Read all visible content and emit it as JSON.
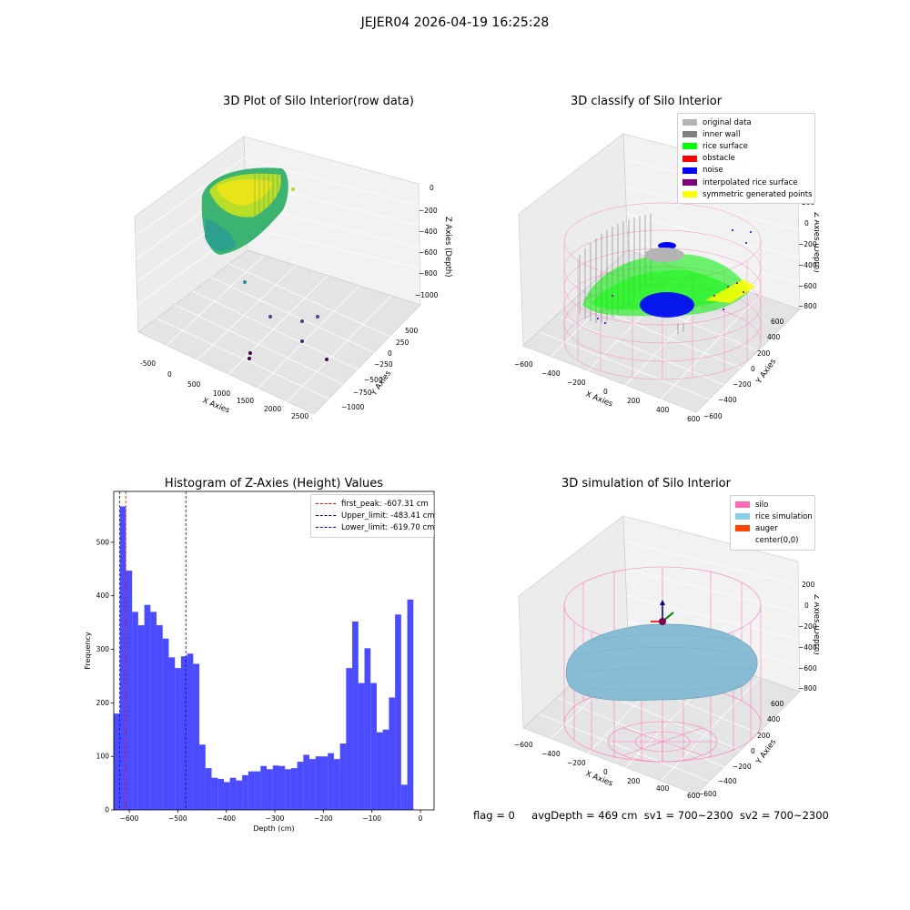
{
  "suptitle": "JEJER04 2026-04-19 16:25:28",
  "panels": {
    "raw": {
      "title": "3D Plot of Silo Interior(row data)",
      "xlabel": "X Axies",
      "ylabel": "Y Axies",
      "zlabel": "Z Axies (Depth)",
      "xticks": [
        "-500",
        "0",
        "500",
        "1000",
        "1500",
        "2000",
        "2500"
      ],
      "yticks": [
        "500",
        "250",
        "0",
        "−250",
        "−500",
        "−750",
        "−1000"
      ],
      "zticks": [
        "0",
        "−200",
        "−400",
        "−600",
        "−800",
        "−1000"
      ]
    },
    "classify": {
      "title": "3D classify of Silo Interior",
      "xlabel": "X Axies",
      "ylabel": "Y Axies",
      "zlabel": "Z Axies (Depth)",
      "xticks": [
        "−600",
        "−400",
        "−200",
        "0",
        "200",
        "400",
        "600"
      ],
      "yticks": [
        "600",
        "400",
        "200",
        "0",
        "−200",
        "−400",
        "−600"
      ],
      "zticks": [
        "200",
        "0",
        "−200",
        "−400",
        "−600",
        "−800"
      ],
      "legend": [
        {
          "label": "original data",
          "color": "#b4b4b4"
        },
        {
          "label": "inner wall",
          "color": "#808080"
        },
        {
          "label": "rice surface",
          "color": "#00ff00"
        },
        {
          "label": "obstacle",
          "color": "#ff0000"
        },
        {
          "label": "noise",
          "color": "#0000ff"
        },
        {
          "label": "interpolated rice surface",
          "color": "#800080"
        },
        {
          "label": "symmetric generated points",
          "color": "#ffff00"
        }
      ]
    },
    "simulation": {
      "title": "3D simulation of Silo Interior",
      "xlabel": "X Axies",
      "ylabel": "Y Axies",
      "zlabel": "Z Axies (Depth)",
      "xticks": [
        "−600",
        "−400",
        "−200",
        "0",
        "200",
        "400",
        "600"
      ],
      "yticks": [
        "600",
        "400",
        "200",
        "0",
        "−200",
        "−400",
        "−600"
      ],
      "zticks": [
        "200",
        "0",
        "−200",
        "−400",
        "−600",
        "−800"
      ],
      "legend": [
        {
          "label": "silo",
          "color": "#ff69b4"
        },
        {
          "label": "rice simulation",
          "color": "#87ceeb"
        },
        {
          "label": "auger",
          "color": "#ff4500"
        },
        {
          "label": "center(0,0)",
          "color": ""
        }
      ]
    }
  },
  "status": {
    "flag": "flag = 0",
    "avg_depth": "avgDepth = 469 cm",
    "sv1": "sv1 = 700~2300",
    "sv2": "sv2 = 700~2300"
  },
  "chart_data": {
    "type": "bar",
    "title": "Histogram of Z-Axies (Height) Values",
    "xlabel": "Depth (cm)",
    "ylabel": "Frequency",
    "xlim": [
      -632,
      28
    ],
    "ylim": [
      0,
      595
    ],
    "xticks": [
      -600,
      -500,
      -400,
      -300,
      -200,
      -100,
      0
    ],
    "yticks": [
      0,
      100,
      200,
      300,
      400,
      500
    ],
    "bin_start": -632,
    "bin_width": 12.6,
    "values": [
      180,
      567,
      447,
      370,
      345,
      383,
      370,
      345,
      320,
      285,
      265,
      287,
      292,
      273,
      122,
      78,
      60,
      58,
      52,
      60,
      55,
      65,
      72,
      72,
      82,
      76,
      83,
      82,
      76,
      78,
      90,
      103,
      95,
      100,
      100,
      106,
      95,
      124,
      265,
      352,
      237,
      302,
      237,
      145,
      150,
      210,
      365,
      47,
      393
    ],
    "bar_color": "#0000ff",
    "vlines": [
      {
        "label": "first_peak: -607.31 cm",
        "x": -607.31,
        "color": "#ff0000"
      },
      {
        "label": "Upper_limit: -483.41 cm",
        "x": -483.41,
        "color": "#00008b"
      },
      {
        "label": "Lower_limit: -619.70 cm",
        "x": -619.7,
        "color": "#0000ff"
      }
    ],
    "legend_position": "top-right"
  }
}
